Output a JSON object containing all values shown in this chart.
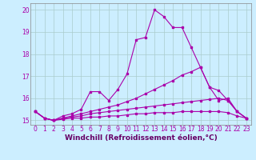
{
  "title": "",
  "xlabel": "Windchill (Refroidissement éolien,°C)",
  "ylabel": "",
  "background_color": "#cceeff",
  "grid_color": "#aacccc",
  "line_color": "#aa00aa",
  "x": [
    0,
    1,
    2,
    3,
    4,
    5,
    6,
    7,
    8,
    9,
    10,
    11,
    12,
    13,
    14,
    15,
    16,
    17,
    18,
    19,
    20,
    21,
    22,
    23
  ],
  "series1": [
    15.4,
    15.1,
    15.0,
    15.2,
    15.3,
    15.5,
    16.3,
    16.3,
    15.9,
    16.4,
    17.1,
    18.65,
    18.75,
    20.0,
    19.7,
    19.2,
    19.2,
    18.3,
    17.4,
    16.5,
    15.9,
    16.0,
    15.4,
    15.1
  ],
  "series2": [
    15.4,
    15.1,
    15.0,
    15.1,
    15.2,
    15.3,
    15.4,
    15.5,
    15.6,
    15.7,
    15.85,
    16.0,
    16.2,
    16.4,
    16.6,
    16.8,
    17.05,
    17.2,
    17.4,
    16.5,
    16.35,
    15.9,
    15.4,
    15.1
  ],
  "series3": [
    15.4,
    15.1,
    15.0,
    15.1,
    15.15,
    15.2,
    15.3,
    15.35,
    15.4,
    15.45,
    15.5,
    15.55,
    15.6,
    15.65,
    15.7,
    15.75,
    15.8,
    15.85,
    15.9,
    15.95,
    16.0,
    15.9,
    15.4,
    15.1
  ],
  "series4": [
    15.4,
    15.1,
    15.0,
    15.05,
    15.1,
    15.1,
    15.15,
    15.15,
    15.2,
    15.2,
    15.25,
    15.3,
    15.3,
    15.35,
    15.35,
    15.35,
    15.4,
    15.4,
    15.4,
    15.4,
    15.4,
    15.35,
    15.2,
    15.1
  ],
  "ylim": [
    14.8,
    20.3
  ],
  "xlim": [
    -0.5,
    23.5
  ],
  "yticks": [
    15,
    16,
    17,
    18,
    19,
    20
  ],
  "xticks": [
    0,
    1,
    2,
    3,
    4,
    5,
    6,
    7,
    8,
    9,
    10,
    11,
    12,
    13,
    14,
    15,
    16,
    17,
    18,
    19,
    20,
    21,
    22,
    23
  ],
  "tick_label_color": "#aa00aa",
  "xlabel_color": "#660066",
  "xlabel_fontsize": 6.5,
  "tick_fontsize": 5.5
}
